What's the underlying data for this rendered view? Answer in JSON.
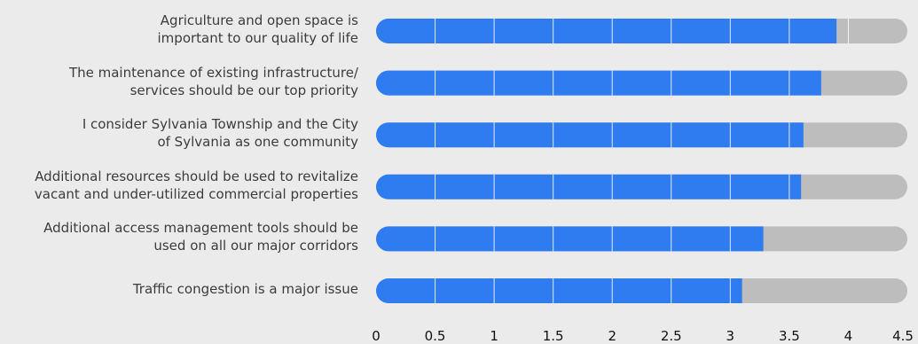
{
  "chart_data": {
    "type": "bar",
    "orientation": "horizontal",
    "categories": [
      [
        "Agriculture and open space is",
        "important to our quality of life"
      ],
      [
        "The maintenance of existing infrastructure/",
        "services should be our top priority"
      ],
      [
        "I consider Sylvania Township and the City",
        "of Sylvania as one community"
      ],
      [
        "Additional resources should be used to revitalize",
        "vacant and under-utilized commercial properties"
      ],
      [
        "Additional access management tools should be",
        "used on all our major corridors"
      ],
      [
        "Traffic congestion is a major issue"
      ]
    ],
    "values": [
      3.9,
      3.77,
      3.62,
      3.6,
      3.28,
      3.1
    ],
    "scale_max": 4.5,
    "xlim": [
      0,
      4.5
    ],
    "x_ticks": [
      "0",
      "0.5",
      "1",
      "1.5",
      "2",
      "2.5",
      "3",
      "3.5",
      "4",
      "4.5"
    ],
    "grid": "vertical gridlines drawn over bars",
    "colors": {
      "value": "#2f7bf0",
      "track": "#bdbdbd",
      "background": "#ebebeb"
    }
  }
}
